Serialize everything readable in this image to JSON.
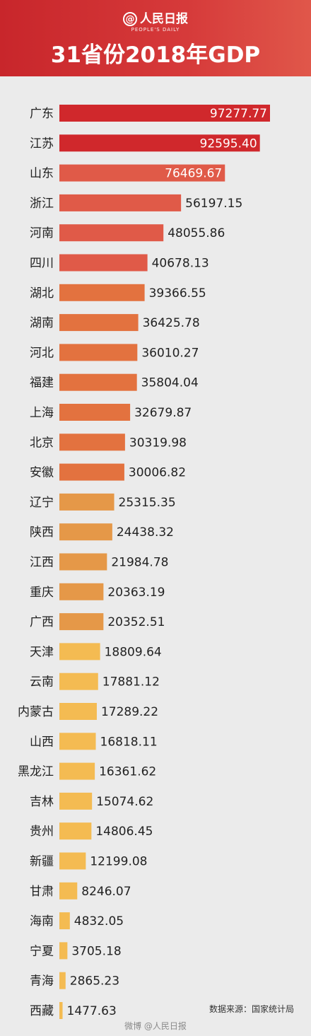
{
  "header": {
    "logo_text": "人民日报",
    "logo_sub": "PEOPLE'S DAILY",
    "title": "31省份2018年GDP"
  },
  "colors": {
    "tier1": "#d0282c",
    "tier2": "#e05a48",
    "tier3": "#e3723f",
    "tier4": "#e59848",
    "tier5": "#f4bb52"
  },
  "chart_data": {
    "type": "bar",
    "orientation": "horizontal",
    "title": "31省份2018年GDP",
    "categories": [
      "广东",
      "江苏",
      "山东",
      "浙江",
      "河南",
      "四川",
      "湖北",
      "湖南",
      "河北",
      "福建",
      "上海",
      "北京",
      "安徽",
      "辽宁",
      "陕西",
      "江西",
      "重庆",
      "广西",
      "天津",
      "云南",
      "内蒙古",
      "山西",
      "黑龙江",
      "吉林",
      "贵州",
      "新疆",
      "甘肃",
      "海南",
      "宁夏",
      "青海",
      "西藏"
    ],
    "values": [
      97277.77,
      92595.4,
      76469.67,
      56197.15,
      48055.86,
      40678.13,
      39366.55,
      36425.78,
      36010.27,
      35804.04,
      32679.87,
      30319.98,
      30006.82,
      25315.35,
      24438.32,
      21984.78,
      20363.19,
      20352.51,
      18809.64,
      17881.12,
      17289.22,
      16818.11,
      16361.62,
      15074.62,
      14806.45,
      12199.08,
      8246.07,
      4832.05,
      3705.18,
      2865.23,
      1477.63
    ],
    "labels": [
      "97277.77",
      "92595.40",
      "76469.67",
      "56197.15",
      "48055.86",
      "40678.13",
      "39366.55",
      "36425.78",
      "36010.27",
      "35804.04",
      "32679.87",
      "30319.98",
      "30006.82",
      "25315.35",
      "24438.32",
      "21984.78",
      "20363.19",
      "20352.51",
      "18809.64",
      "17881.12",
      "17289.22",
      "16818.11",
      "16361.62",
      "15074.62",
      "14806.45",
      "12199.08",
      "8246.07",
      "4832.05",
      "3705.18",
      "2865.23",
      "1477.63"
    ],
    "tiers": [
      1,
      1,
      2,
      2,
      2,
      2,
      3,
      3,
      3,
      3,
      3,
      3,
      3,
      4,
      4,
      4,
      4,
      4,
      5,
      5,
      5,
      5,
      5,
      5,
      5,
      5,
      5,
      5,
      5,
      5,
      5
    ],
    "label_inside": [
      true,
      true,
      true,
      false,
      false,
      false,
      false,
      false,
      false,
      false,
      false,
      false,
      false,
      false,
      false,
      false,
      false,
      false,
      false,
      false,
      false,
      false,
      false,
      false,
      false,
      false,
      false,
      false,
      false,
      false,
      false
    ],
    "xlim": [
      0,
      100000
    ]
  },
  "source": "数据来源：国家统计局",
  "footer": "微博 @人民日报"
}
